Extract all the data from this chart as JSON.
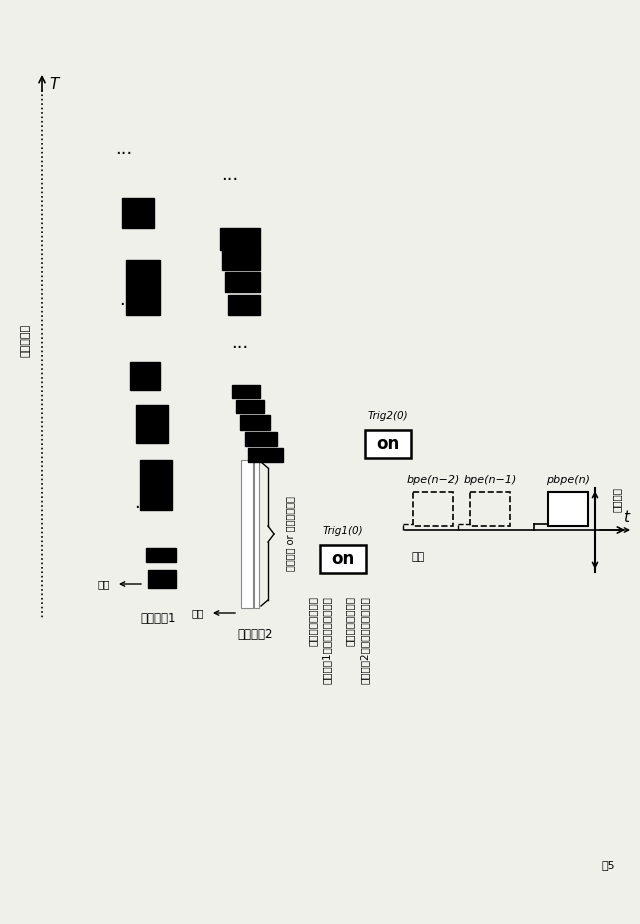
{
  "bg_color": "#f0f0eb",
  "fig_num": "5",
  "T_label": "T",
  "t_label": "t",
  "sample_point_label": "サンプル点",
  "track1_label": "トラック1",
  "track2_label": "トラック2",
  "onsei_label": "音程",
  "null_blank_label": "ヌル情報 or ブランク情報",
  "trig1_label": "Trig1(0)",
  "trig2_label": "Trig2(0)",
  "on_label": "on",
  "trig1_point_label": "トリガーポイント",
  "trig1_track_label": "トラック1のトラック制御情報",
  "trig2_point_label": "トリガーポイント",
  "trig2_track_label": "トラック2のトラック制御情報",
  "bpe_n2_label": "bpe(n−2)",
  "bpe_n1_label": "bpe(n−1)",
  "pbpe_n_label": "pbpe(n)",
  "time_label": "時刻",
  "current_time_label": "現在時刻"
}
